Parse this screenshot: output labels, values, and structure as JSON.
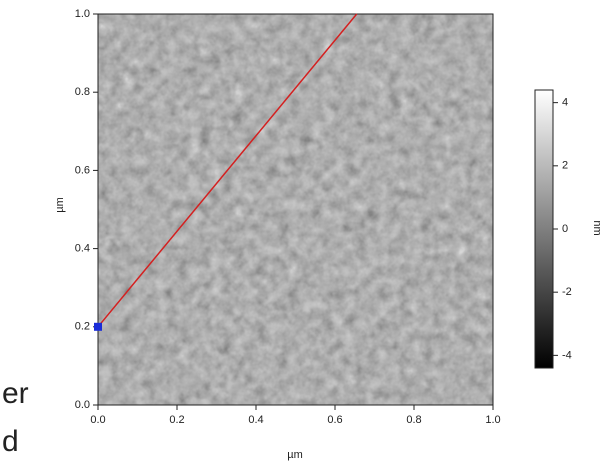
{
  "chart_data": {
    "type": "image",
    "x_label": "µm",
    "y_label": "µm",
    "colorbar_label": "nm",
    "xlim": [
      0,
      1
    ],
    "ylim": [
      0,
      1
    ],
    "xticks": [
      {
        "value": 0,
        "label": "0.0"
      },
      0.2,
      0.4,
      0.6,
      0.8,
      {
        "value": 1,
        "label": "1.0"
      }
    ],
    "yticks": [
      {
        "value": 0,
        "label": "0.0"
      },
      0.2,
      0.4,
      0.6,
      0.8,
      {
        "value": 1,
        "label": "1.0"
      }
    ],
    "zlim": [
      -4.4,
      4.4
    ],
    "zticks": [
      4,
      2,
      0,
      -2,
      -4
    ],
    "series": [
      {
        "x": [
          0,
          0.655
        ],
        "values": [
          0.2,
          1.0
        ],
        "color": "#d42020",
        "marker_color": "#1a2cd8"
      }
    ]
  },
  "fragments": [
    "er",
    "d"
  ]
}
